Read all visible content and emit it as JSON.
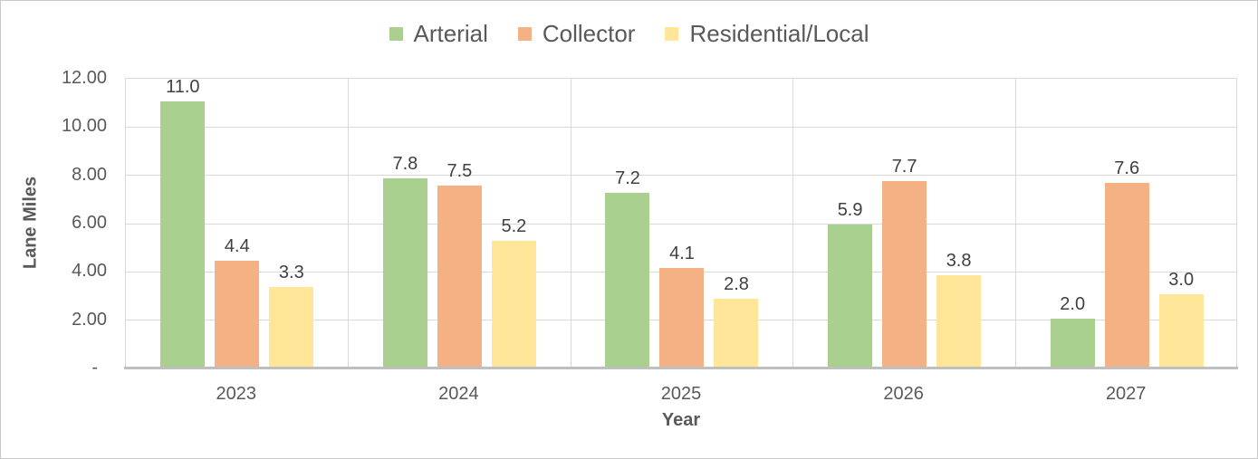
{
  "chart_data": {
    "type": "bar",
    "title": "",
    "xlabel": "Year",
    "ylabel": "Lane Miles",
    "categories": [
      "2023",
      "2024",
      "2025",
      "2026",
      "2027"
    ],
    "series": [
      {
        "name": "Arterial",
        "color": "#A9D08E",
        "values": [
          11.0,
          7.8,
          7.2,
          5.9,
          2.0
        ],
        "data_labels": [
          "11.0",
          "7.8",
          "7.2",
          "5.9",
          "2.0"
        ]
      },
      {
        "name": "Collector",
        "color": "#F4B183",
        "values": [
          4.4,
          7.5,
          4.1,
          7.7,
          7.6
        ],
        "data_labels": [
          "4.4",
          "7.5",
          "4.1",
          "7.7",
          "7.6"
        ]
      },
      {
        "name": "Residential/Local",
        "color": "#FFE699",
        "values": [
          3.3,
          5.2,
          2.8,
          3.8,
          3.0
        ],
        "data_labels": [
          "3.3",
          "5.2",
          "2.8",
          "3.8",
          "3.0"
        ]
      }
    ],
    "ylim": [
      0,
      12
    ],
    "yticks": [
      {
        "value": 12,
        "label": "12.00"
      },
      {
        "value": 10,
        "label": "10.00"
      },
      {
        "value": 8,
        "label": "8.00"
      },
      {
        "value": 6,
        "label": "6.00"
      },
      {
        "value": 4,
        "label": "4.00"
      },
      {
        "value": 2,
        "label": "2.00"
      },
      {
        "value": 0,
        "label": "-"
      }
    ],
    "grid": true,
    "legend_position": "top",
    "colors": {
      "gridline": "#D9D9D9",
      "axis_line": "#BFBFBF",
      "tick_text": "#595959",
      "data_label_text": "#404040"
    }
  }
}
